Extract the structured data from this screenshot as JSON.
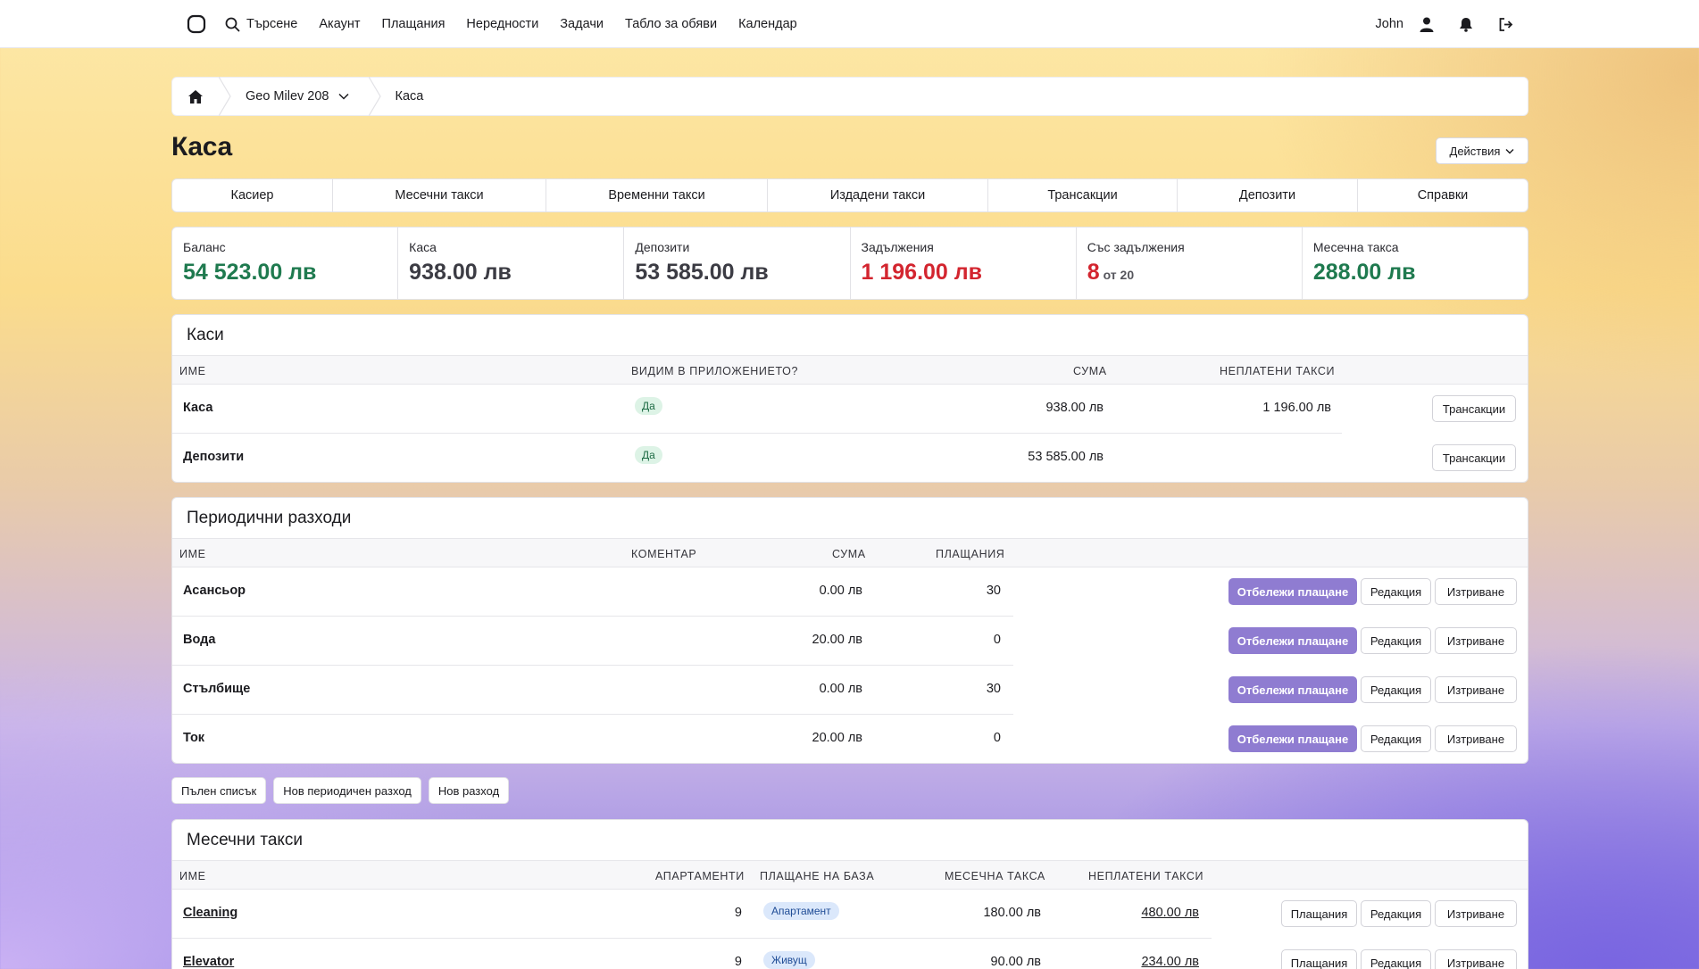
{
  "nav": {
    "search": "Търсене",
    "items": [
      "Акаунт",
      "Плащания",
      "Нередности",
      "Задачи",
      "Табло за обяви",
      "Календар"
    ],
    "user": "John"
  },
  "breadcrumb": {
    "building": "Geo Milev 208",
    "current": "Каса"
  },
  "page": {
    "title": "Каса",
    "actions": "Действия"
  },
  "tabs": [
    "Касиер",
    "Месечни такси",
    "Временни такси",
    "Издадени такси",
    "Трансакции",
    "Депозити",
    "Справки"
  ],
  "stats": [
    {
      "label": "Баланс",
      "value": "54 523.00 лв",
      "color": "green"
    },
    {
      "label": "Каса",
      "value": "938.00 лв",
      "color": "gray"
    },
    {
      "label": "Депозити",
      "value": "53 585.00 лв",
      "color": "gray"
    },
    {
      "label": "Задължения",
      "value": "1 196.00 лв",
      "color": "red"
    },
    {
      "label": "Със задължения",
      "value": "8",
      "sub": "от 20",
      "color": "red"
    },
    {
      "label": "Месечна такса",
      "value": "288.00 лв",
      "color": "green"
    }
  ],
  "cashboxes": {
    "title": "Каси",
    "headers": [
      "ИМЕ",
      "ВИДИМ В ПРИЛОЖЕНИЕТО?",
      "СУМА",
      "НЕПЛАТЕНИ ТАКСИ"
    ],
    "rows": [
      {
        "name": "Каса",
        "visible": "Да",
        "amount": "938.00 лв",
        "unpaid": "1 196.00 лв",
        "action": "Трансакции"
      },
      {
        "name": "Депозити",
        "visible": "Да",
        "amount": "53 585.00 лв",
        "unpaid": "",
        "action": "Трансакции"
      }
    ]
  },
  "periodic": {
    "title": "Периодични разходи",
    "headers": [
      "ИМЕ",
      "КОМЕНТАР",
      "СУМА",
      "ПЛАЩАНИЯ"
    ],
    "rows": [
      {
        "name": "Асансьор",
        "amount": "0.00 лв",
        "payments": "30"
      },
      {
        "name": "Вода",
        "amount": "20.00 лв",
        "payments": "0"
      },
      {
        "name": "Стълбище",
        "amount": "0.00 лв",
        "payments": "30"
      },
      {
        "name": "Ток",
        "amount": "20.00 лв",
        "payments": "0"
      }
    ],
    "mark_label": "Отбележи плащане",
    "edit_label": "Редакция",
    "delete_label": "Изтриване"
  },
  "bottom_buttons": [
    "Пълен списък",
    "Нов периодичен разход",
    "Нов разход"
  ],
  "monthly": {
    "title": "Месечни такси",
    "headers": [
      "ИМЕ",
      "АПАРТАМЕНТИ",
      "ПЛАЩАНЕ НА БАЗА",
      "МЕСЕЧНА ТАКСА",
      "НЕПЛАТЕНИ ТАКСИ"
    ],
    "rows": [
      {
        "name": "Cleaning",
        "apartments": "9",
        "basis": "Апартамент",
        "fee": "180.00 лв",
        "unpaid": "480.00 лв"
      },
      {
        "name": "Elevator",
        "apartments": "9",
        "basis": "Живущ",
        "fee": "90.00 лв",
        "unpaid": "234.00 лв"
      }
    ],
    "payments_label": "Плащания",
    "edit_label": "Редакция",
    "delete_label": "Изтриване"
  }
}
